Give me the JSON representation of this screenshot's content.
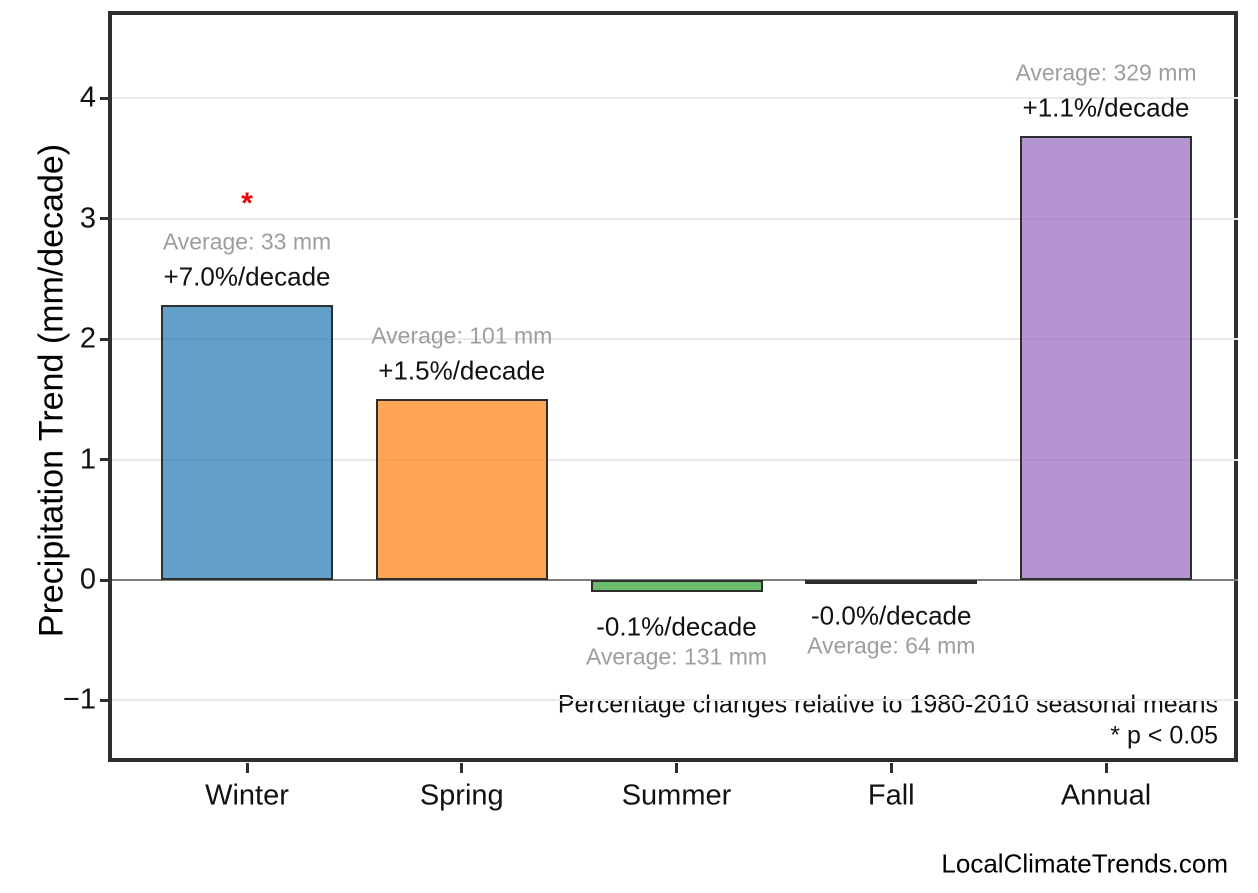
{
  "chart_data": {
    "type": "bar",
    "title": "",
    "ylabel": "Precipitation Trend (mm/decade)",
    "xlabel": "",
    "categories": [
      "Winter",
      "Spring",
      "Summer",
      "Fall",
      "Annual"
    ],
    "values": [
      2.28,
      1.5,
      -0.1,
      -0.01,
      3.69
    ],
    "series_colors": [
      "#1f77b4",
      "#ff7f0e",
      "#2ca02c",
      "#d62728",
      "#9467bd"
    ],
    "bar_alpha": 0.7,
    "bar_edge_color": "#2e2e2e",
    "yticks": [
      -1,
      0,
      1,
      2,
      3,
      4
    ],
    "ytick_labels": [
      "−1",
      "0",
      "1",
      "2",
      "3",
      "4"
    ],
    "ylim": [
      -1.52,
      4.72
    ],
    "grid": "horizontal light-gray lines at integer ticks, darker gray line at zero",
    "legend": "none",
    "annotations": [
      {
        "category": "Winter",
        "percent_label": "+7.0%/decade",
        "average_label": "Average: 33 mm",
        "significant": true,
        "star": "*"
      },
      {
        "category": "Spring",
        "percent_label": "+1.5%/decade",
        "average_label": "Average: 101 mm",
        "significant": false,
        "star": ""
      },
      {
        "category": "Summer",
        "percent_label": "-0.1%/decade",
        "average_label": "Average: 131 mm",
        "significant": false,
        "star": ""
      },
      {
        "category": "Fall",
        "percent_label": "-0.0%/decade",
        "average_label": "Average: 64 mm",
        "significant": false,
        "star": ""
      },
      {
        "category": "Annual",
        "percent_label": "+1.1%/decade",
        "average_label": "Average: 329 mm",
        "significant": false,
        "star": ""
      }
    ],
    "footnotes": [
      "Percentage changes relative to 1980-2010 seasonal means",
      "* p < 0.05"
    ],
    "watermark": "LocalClimateTrends.com",
    "text_colors": {
      "percent": "#111111",
      "average": "#9e9e9e",
      "star": "#f40000",
      "footnote": "#111111"
    }
  }
}
